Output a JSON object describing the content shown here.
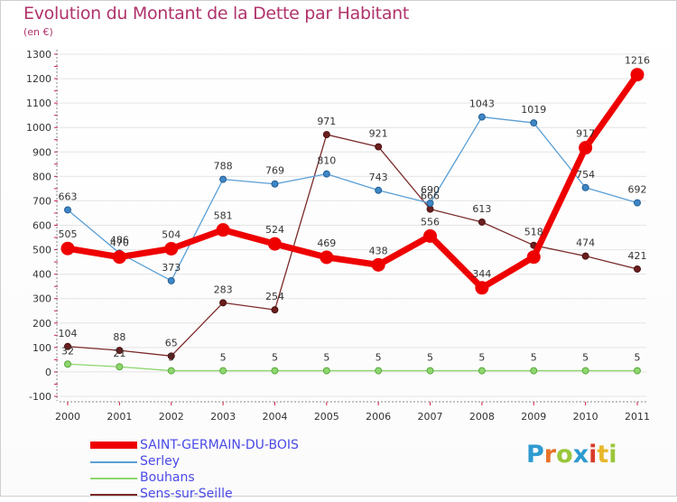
{
  "header": {
    "title": "Evolution du Montant de la Dette par Habitant",
    "subtitle": "(en €)"
  },
  "logo": {
    "text": "Proxiti",
    "colors": [
      "#2e9ad0",
      "#e8732a",
      "#9ac63a",
      "#2e9ad0",
      "#d93a2b",
      "#e8b82a",
      "#9ac63a"
    ]
  },
  "chart_data": {
    "type": "line",
    "title": "Evolution du Montant de la Dette par Habitant",
    "subtitle": "(en €)",
    "xlabel": "",
    "ylabel": "",
    "x": [
      "2000",
      "2001",
      "2002",
      "2003",
      "2004",
      "2005",
      "2006",
      "2007",
      "2008",
      "2009",
      "2010",
      "2011"
    ],
    "ylim": [
      -100,
      1300
    ],
    "yticks": [
      "-100",
      "0",
      "100",
      "200",
      "300",
      "400",
      "500",
      "600",
      "700",
      "800",
      "900",
      "1000",
      "1100",
      "1200",
      "1300"
    ],
    "grid": "horizontal",
    "legend_position": "bottom",
    "series": [
      {
        "name": "SAINT-GERMAIN-DU-BOIS",
        "color": "#ee0000",
        "values": [
          505,
          470,
          504,
          581,
          524,
          469,
          438,
          556,
          344,
          470,
          917,
          1216
        ],
        "labels": [
          "505",
          "470",
          "504",
          "581",
          "524",
          "469",
          "438",
          "556",
          "344",
          "",
          "917",
          "1216"
        ]
      },
      {
        "name": "Serley",
        "color": "#5a9fd6",
        "values": [
          663,
          486,
          373,
          788,
          769,
          810,
          743,
          690,
          1043,
          1019,
          754,
          692
        ],
        "labels": [
          "663",
          "486",
          "373",
          "788",
          "769",
          "810",
          "743",
          "690",
          "1043",
          "1019",
          "754",
          "692"
        ]
      },
      {
        "name": "Bouhans",
        "color": "#8ed66e",
        "values": [
          32,
          21,
          5,
          5,
          5,
          5,
          5,
          5,
          5,
          5,
          5,
          5
        ],
        "labels": [
          "32",
          "21",
          "5",
          "5",
          "5",
          "5",
          "5",
          "5",
          "5",
          "5",
          "5",
          "5"
        ]
      },
      {
        "name": "Sens-sur-Seille",
        "color": "#7b2a2a",
        "values": [
          104,
          88,
          65,
          283,
          254,
          971,
          921,
          666,
          613,
          518,
          474,
          421
        ],
        "labels": [
          "104",
          "88",
          "65",
          "283",
          "254",
          "971",
          "921",
          "666",
          "613",
          "518",
          "474",
          "421"
        ]
      }
    ]
  }
}
